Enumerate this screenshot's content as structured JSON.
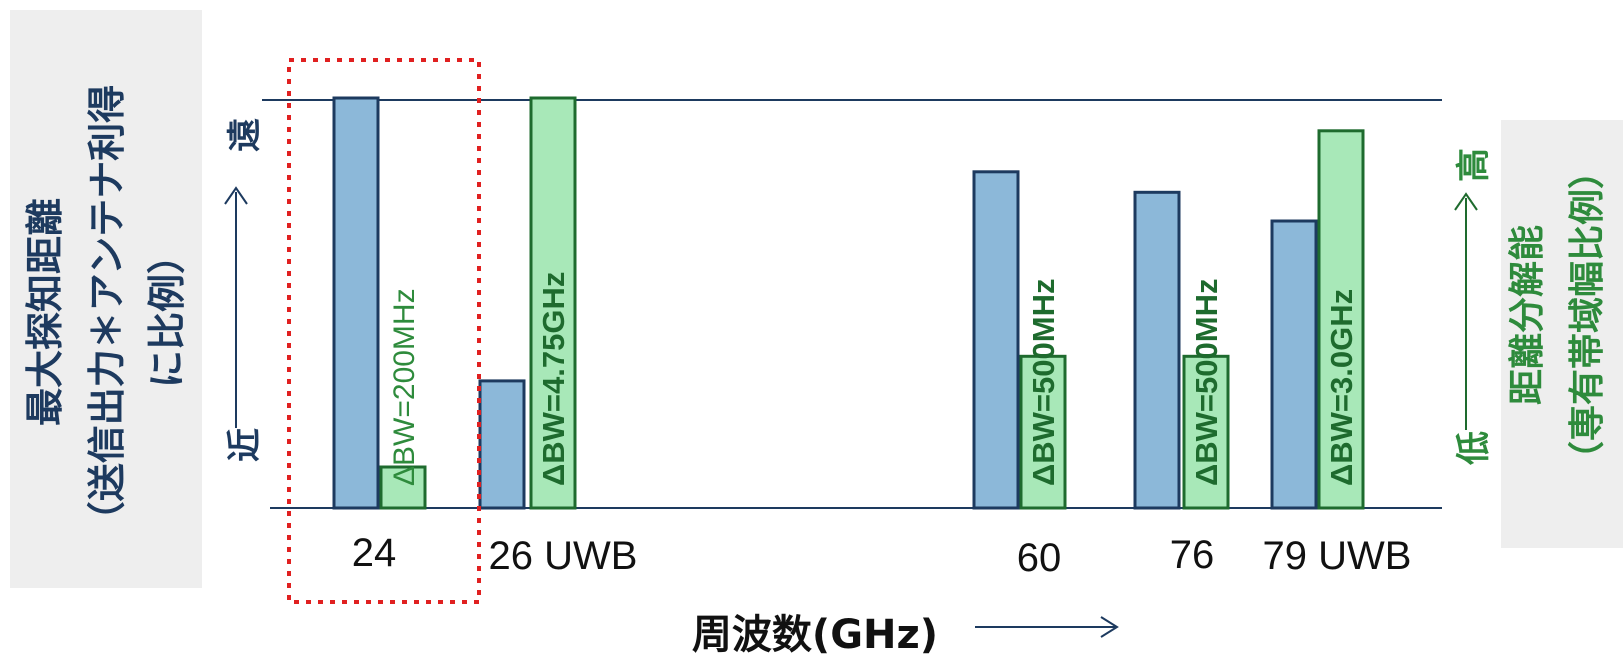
{
  "chart_data": {
    "type": "bar",
    "categories": [
      "24",
      "26 UWB",
      "60",
      "76",
      "79 UWB"
    ],
    "series": [
      {
        "name": "最大探知距離",
        "values": [
          100,
          31,
          82,
          77,
          70
        ]
      },
      {
        "name": "距離分解能",
        "values": [
          10,
          100,
          37,
          37,
          92
        ]
      }
    ],
    "bar_labels": [
      "ΔBW=200MHz",
      "ΔBW=4.75GHz",
      "ΔBW=500MHz",
      "ΔBW=500MHz",
      "ΔBW=3.0GHz"
    ],
    "bar_label_bold": [
      false,
      true,
      true,
      true,
      true
    ],
    "ylim": [
      0,
      100
    ],
    "xlabel": "周波数(GHz)",
    "left_axis": {
      "title_lines": [
        "最大探知距離",
        "（送信出力＊アンテナ利得",
        "に比例）"
      ],
      "near": "近",
      "far": "遠"
    },
    "right_axis": {
      "title_lines": [
        "距離分解能",
        "（専有帯域幅比例）"
      ],
      "low": "低",
      "high": "高"
    },
    "highlight_category": "24",
    "colors": {
      "blue_fill": "#8cb8d9",
      "blue_stroke": "#1d3a5f",
      "green_fill": "#a8e8b8",
      "green_stroke": "#1e6b2e",
      "green_text": "#2e8b3c",
      "navy": "#1d3a5f",
      "highlight": "#e02020",
      "panel": "#eeeeee"
    }
  }
}
